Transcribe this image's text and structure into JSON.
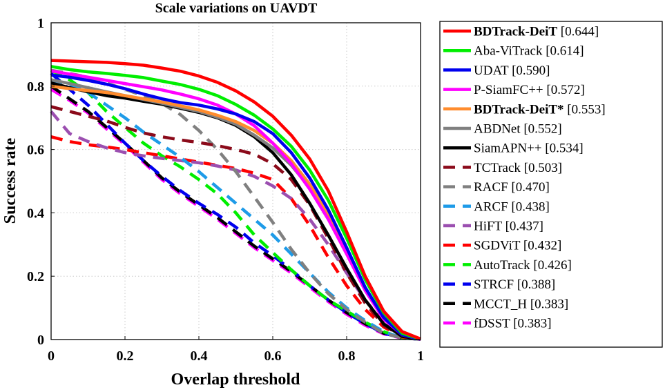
{
  "chart_data": {
    "type": "line",
    "title": "Scale variations on UAVDT",
    "xlabel": "Overlap threshold",
    "ylabel": "Success rate",
    "xlim": [
      0,
      1
    ],
    "ylim": [
      0,
      1
    ],
    "xticks": [
      "0",
      "0.2",
      "0.4",
      "0.6",
      "0.8",
      "1"
    ],
    "yticks": [
      "0",
      "0.2",
      "0.4",
      "0.6",
      "0.8",
      "1"
    ],
    "grid": true,
    "legend_position": "outside-right",
    "x": [
      0,
      0.05,
      0.1,
      0.15,
      0.2,
      0.25,
      0.3,
      0.35,
      0.4,
      0.45,
      0.5,
      0.55,
      0.6,
      0.65,
      0.7,
      0.75,
      0.8,
      0.85,
      0.9,
      0.95,
      1.0
    ],
    "series": [
      {
        "name": "BDTrack-DeiT",
        "score": "[0.644]",
        "bold": true,
        "color": "#ff0000",
        "dash": "solid",
        "values": [
          0.881,
          0.879,
          0.877,
          0.875,
          0.871,
          0.866,
          0.857,
          0.847,
          0.832,
          0.812,
          0.785,
          0.75,
          0.705,
          0.645,
          0.57,
          0.47,
          0.34,
          0.2,
          0.09,
          0.025,
          0.002
        ]
      },
      {
        "name": "Aba-ViTrack",
        "score": "[0.614]",
        "bold": false,
        "color": "#00ee00",
        "dash": "solid",
        "values": [
          0.862,
          0.852,
          0.845,
          0.84,
          0.834,
          0.827,
          0.816,
          0.805,
          0.79,
          0.77,
          0.742,
          0.708,
          0.665,
          0.61,
          0.535,
          0.44,
          0.32,
          0.19,
          0.085,
          0.02,
          0.002
        ]
      },
      {
        "name": "UDAT",
        "score": "[0.590]",
        "bold": false,
        "color": "#0000ee",
        "dash": "solid",
        "values": [
          0.835,
          0.828,
          0.818,
          0.806,
          0.792,
          0.775,
          0.76,
          0.748,
          0.74,
          0.728,
          0.712,
          0.688,
          0.65,
          0.59,
          0.51,
          0.41,
          0.29,
          0.165,
          0.07,
          0.015,
          0.001
        ]
      },
      {
        "name": "P-SiamFC++",
        "score": "[0.572]",
        "bold": false,
        "color": "#ff00ff",
        "dash": "solid",
        "values": [
          0.848,
          0.838,
          0.828,
          0.818,
          0.808,
          0.798,
          0.788,
          0.775,
          0.76,
          0.74,
          0.712,
          0.675,
          0.62,
          0.555,
          0.475,
          0.38,
          0.27,
          0.155,
          0.065,
          0.015,
          0.001
        ]
      },
      {
        "name": "BDTrack-DeiT*",
        "score": "[0.553]",
        "bold": true,
        "color": "#ff8c2e",
        "dash": "solid",
        "values": [
          0.8,
          0.792,
          0.786,
          0.78,
          0.77,
          0.76,
          0.75,
          0.738,
          0.725,
          0.708,
          0.688,
          0.66,
          0.62,
          0.565,
          0.49,
          0.395,
          0.28,
          0.16,
          0.07,
          0.015,
          0.001
        ]
      },
      {
        "name": "ABDNet",
        "score": "[0.552]",
        "bold": false,
        "color": "#808080",
        "dash": "solid",
        "values": [
          0.82,
          0.808,
          0.795,
          0.782,
          0.77,
          0.758,
          0.746,
          0.733,
          0.72,
          0.702,
          0.68,
          0.645,
          0.605,
          0.55,
          0.48,
          0.39,
          0.275,
          0.16,
          0.07,
          0.015,
          0.001
        ]
      },
      {
        "name": "SiamAPN++",
        "score": "[0.534]",
        "bold": false,
        "color": "#000000",
        "dash": "solid",
        "values": [
          0.81,
          0.795,
          0.782,
          0.77,
          0.762,
          0.752,
          0.743,
          0.73,
          0.717,
          0.7,
          0.676,
          0.64,
          0.59,
          0.52,
          0.43,
          0.33,
          0.225,
          0.125,
          0.05,
          0.01,
          0.001
        ]
      },
      {
        "name": "TCTrack",
        "score": "[0.503]",
        "bold": false,
        "color": "#8b0a1a",
        "dash": "dash",
        "values": [
          0.735,
          0.72,
          0.705,
          0.69,
          0.67,
          0.652,
          0.64,
          0.63,
          0.622,
          0.612,
          0.6,
          0.585,
          0.555,
          0.505,
          0.425,
          0.32,
          0.21,
          0.115,
          0.045,
          0.01,
          0.001
        ]
      },
      {
        "name": "RACF",
        "score": "[0.470]",
        "bold": false,
        "color": "#808080",
        "dash": "dash",
        "values": [
          0.85,
          0.84,
          0.828,
          0.81,
          0.79,
          0.77,
          0.745,
          0.71,
          0.66,
          0.6,
          0.53,
          0.45,
          0.37,
          0.285,
          0.21,
          0.145,
          0.095,
          0.055,
          0.02,
          0.005,
          0.001
        ]
      },
      {
        "name": "ARCF",
        "score": "[0.438]",
        "bold": false,
        "color": "#1e9be8",
        "dash": "dash",
        "values": [
          0.82,
          0.805,
          0.78,
          0.74,
          0.7,
          0.655,
          0.615,
          0.575,
          0.53,
          0.48,
          0.43,
          0.38,
          0.33,
          0.27,
          0.21,
          0.15,
          0.1,
          0.06,
          0.025,
          0.005,
          0.001
        ]
      },
      {
        "name": "HiFT",
        "score": "[0.437]",
        "bold": false,
        "color": "#9b4fb0",
        "dash": "dash",
        "values": [
          0.72,
          0.65,
          0.625,
          0.605,
          0.59,
          0.58,
          0.572,
          0.565,
          0.558,
          0.548,
          0.535,
          0.515,
          0.485,
          0.445,
          0.38,
          0.3,
          0.21,
          0.125,
          0.055,
          0.012,
          0.001
        ]
      },
      {
        "name": "SGDViT",
        "score": "[0.432]",
        "bold": false,
        "color": "#ff0000",
        "dash": "dash",
        "values": [
          0.64,
          0.625,
          0.615,
          0.608,
          0.6,
          0.59,
          0.58,
          0.57,
          0.56,
          0.55,
          0.54,
          0.525,
          0.505,
          0.445,
          0.36,
          0.26,
          0.17,
          0.095,
          0.04,
          0.008,
          0.001
        ]
      },
      {
        "name": "AutoTrack",
        "score": "[0.426]",
        "bold": false,
        "color": "#00ee00",
        "dash": "dash",
        "values": [
          0.85,
          0.82,
          0.78,
          0.72,
          0.67,
          0.62,
          0.58,
          0.545,
          0.505,
          0.46,
          0.4,
          0.33,
          0.275,
          0.22,
          0.17,
          0.125,
          0.09,
          0.055,
          0.025,
          0.005,
          0.001
        ]
      },
      {
        "name": "STRCF",
        "score": "[0.388]",
        "bold": false,
        "color": "#0000ee",
        "dash": "dash",
        "values": [
          0.84,
          0.79,
          0.74,
          0.68,
          0.62,
          0.565,
          0.515,
          0.47,
          0.43,
          0.395,
          0.355,
          0.305,
          0.265,
          0.22,
          0.17,
          0.125,
          0.085,
          0.05,
          0.02,
          0.005,
          0.001
        ]
      },
      {
        "name": "MCCT_H",
        "score": "[0.383]",
        "bold": false,
        "color": "#000000",
        "dash": "dash",
        "values": [
          0.8,
          0.76,
          0.72,
          0.67,
          0.62,
          0.565,
          0.51,
          0.465,
          0.425,
          0.385,
          0.34,
          0.295,
          0.255,
          0.215,
          0.17,
          0.125,
          0.085,
          0.05,
          0.02,
          0.005,
          0.001
        ]
      },
      {
        "name": "fDSST",
        "score": "[0.383]",
        "bold": false,
        "color": "#ff00ff",
        "dash": "dash",
        "values": [
          0.79,
          0.755,
          0.715,
          0.665,
          0.615,
          0.56,
          0.505,
          0.46,
          0.42,
          0.38,
          0.335,
          0.29,
          0.25,
          0.21,
          0.165,
          0.12,
          0.08,
          0.045,
          0.018,
          0.004,
          0.001
        ]
      }
    ]
  }
}
